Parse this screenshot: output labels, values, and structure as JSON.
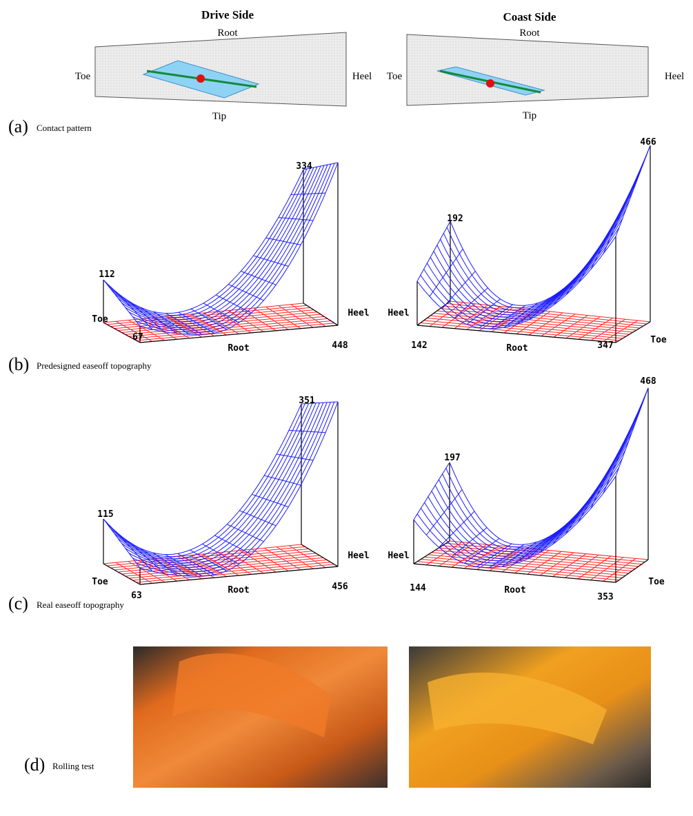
{
  "panels": [
    {
      "label": "(a)",
      "caption": "Contact pattern",
      "plots": [
        {
          "title": "Drive Side",
          "root": "Root",
          "toe": "Toe",
          "heel": "Heel",
          "tip": "Tip"
        },
        {
          "title": "Coast Side",
          "root": "Root",
          "toe": "Toe",
          "heel": "Heel",
          "tip": "Tip"
        }
      ]
    },
    {
      "label": "(b)",
      "caption": "Predesigned easeoff topography",
      "plots": [
        {
          "peak_left": 112,
          "peak_right": 334,
          "toe": "Toe",
          "heel": "Heel",
          "root": "Root",
          "low_left": 67,
          "low_right": 448
        },
        {
          "peak_left": 192,
          "peak_right": 466,
          "toe": "Toe",
          "heel": "Heel",
          "root": "Root",
          "low_left": 142,
          "low_right": 347
        }
      ]
    },
    {
      "label": "(c)",
      "caption": "Real easeoff topography",
      "plots": [
        {
          "peak_left": 115,
          "peak_right": 351,
          "toe": "Toe",
          "heel": "Heel",
          "root": "Root",
          "low_left": 63,
          "low_right": 456
        },
        {
          "peak_left": 197,
          "peak_right": 468,
          "toe": "Toe",
          "heel": "Heel",
          "root": "Root",
          "low_left": 144,
          "low_right": 353
        }
      ]
    },
    {
      "label": "(d)",
      "caption": "Rolling test"
    }
  ]
}
